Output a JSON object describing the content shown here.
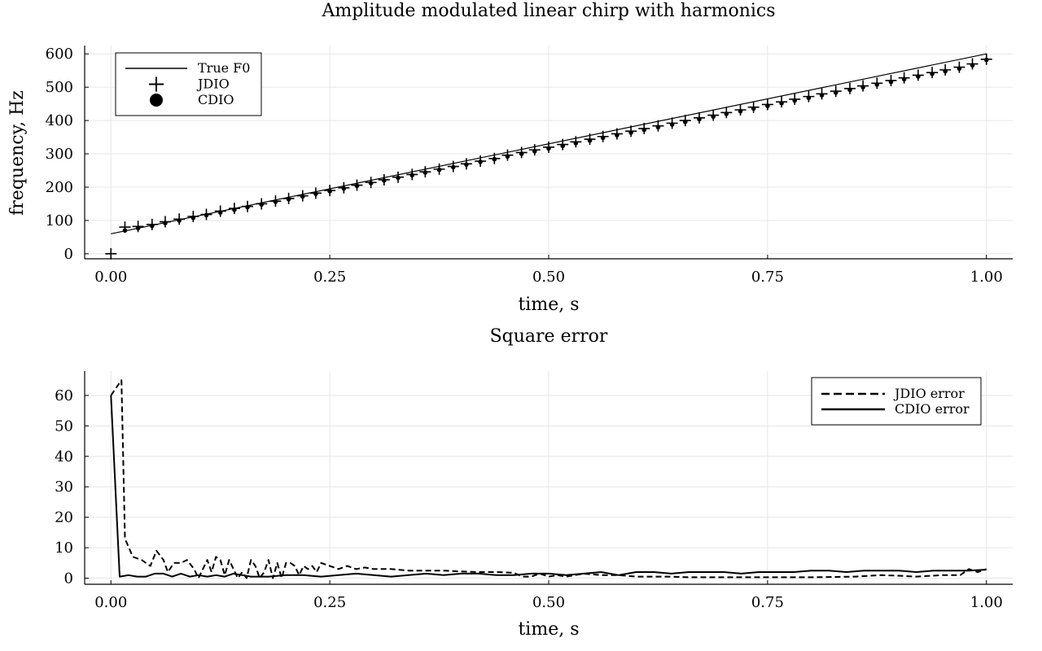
{
  "chart_data": [
    {
      "type": "line",
      "title": "Amplitude modulated linear chirp with harmonics",
      "xlabel": "time, s",
      "ylabel": "frequency, Hz",
      "xlim": [
        -0.03,
        1.03
      ],
      "ylim": [
        -15,
        625
      ],
      "xticks": [
        0,
        0.25,
        0.5,
        0.75,
        1.0
      ],
      "xtick_labels": [
        "0.00",
        "0.25",
        "0.50",
        "0.75",
        "1.00"
      ],
      "yticks": [
        0,
        100,
        200,
        300,
        400,
        500,
        600
      ],
      "ytick_labels": [
        "0",
        "100",
        "200",
        "300",
        "400",
        "500",
        "600"
      ],
      "grid": true,
      "legend_position": "top-left",
      "series": [
        {
          "name": "True F0",
          "style": "line",
          "x": [
            0.0,
            1.0
          ],
          "y": [
            60,
            600
          ]
        },
        {
          "name": "JDIO",
          "style": "plus-marker",
          "x": [
            0.0,
            0.016,
            0.031,
            0.047,
            0.062,
            0.078,
            0.094,
            0.109,
            0.125,
            0.141,
            0.156,
            0.172,
            0.188,
            0.203,
            0.219,
            0.234,
            0.25,
            0.266,
            0.281,
            0.297,
            0.312,
            0.328,
            0.344,
            0.359,
            0.375,
            0.391,
            0.406,
            0.422,
            0.438,
            0.453,
            0.469,
            0.484,
            0.5,
            0.516,
            0.531,
            0.547,
            0.562,
            0.578,
            0.594,
            0.609,
            0.625,
            0.641,
            0.656,
            0.672,
            0.688,
            0.703,
            0.719,
            0.734,
            0.75,
            0.766,
            0.781,
            0.797,
            0.812,
            0.828,
            0.844,
            0.859,
            0.875,
            0.891,
            0.906,
            0.922,
            0.938,
            0.953,
            0.969,
            0.984,
            1.0
          ],
          "y": [
            0,
            80,
            82,
            88,
            96,
            104,
            112,
            118,
            128,
            136,
            142,
            150,
            158,
            166,
            174,
            182,
            190,
            198,
            206,
            214,
            222,
            230,
            238,
            246,
            254,
            262,
            270,
            278,
            286,
            296,
            304,
            312,
            320,
            328,
            336,
            344,
            352,
            360,
            368,
            376,
            384,
            392,
            400,
            408,
            416,
            424,
            432,
            440,
            448,
            456,
            464,
            472,
            480,
            488,
            496,
            504,
            512,
            520,
            528,
            536,
            544,
            552,
            560,
            570,
            584
          ]
        },
        {
          "name": "CDIO",
          "style": "dot-marker",
          "x": [
            0.016,
            0.031,
            0.047,
            0.062,
            0.078,
            0.094,
            0.109,
            0.125,
            0.141,
            0.156,
            0.172,
            0.188,
            0.203,
            0.219,
            0.234,
            0.25,
            0.266,
            0.281,
            0.297,
            0.312,
            0.328,
            0.344,
            0.359,
            0.375,
            0.391,
            0.406,
            0.422,
            0.438,
            0.453,
            0.469,
            0.484,
            0.5,
            0.516,
            0.531,
            0.547,
            0.562,
            0.578,
            0.594,
            0.609,
            0.625,
            0.641,
            0.656,
            0.672,
            0.688,
            0.703,
            0.719,
            0.734,
            0.75,
            0.766,
            0.781,
            0.797,
            0.812,
            0.828,
            0.844,
            0.859,
            0.875,
            0.891,
            0.906,
            0.922,
            0.938,
            0.953,
            0.969,
            0.984,
            1.0
          ],
          "y": [
            70,
            77,
            84,
            92,
            100,
            108,
            116,
            124,
            132,
            140,
            148,
            156,
            164,
            172,
            180,
            188,
            196,
            204,
            212,
            220,
            228,
            236,
            244,
            252,
            260,
            268,
            276,
            284,
            292,
            300,
            308,
            316,
            324,
            332,
            340,
            348,
            356,
            364,
            372,
            380,
            388,
            396,
            404,
            412,
            420,
            428,
            436,
            444,
            452,
            460,
            468,
            476,
            484,
            492,
            500,
            508,
            516,
            524,
            532,
            540,
            548,
            556,
            566,
            582
          ]
        }
      ]
    },
    {
      "type": "line",
      "title": "Square error",
      "xlabel": "time, s",
      "ylabel": "",
      "xlim": [
        -0.03,
        1.03
      ],
      "ylim": [
        -2,
        68
      ],
      "xticks": [
        0,
        0.25,
        0.5,
        0.75,
        1.0
      ],
      "xtick_labels": [
        "0.00",
        "0.25",
        "0.50",
        "0.75",
        "1.00"
      ],
      "yticks": [
        0,
        10,
        20,
        30,
        40,
        50,
        60
      ],
      "ytick_labels": [
        "0",
        "10",
        "20",
        "30",
        "40",
        "50",
        "60"
      ],
      "grid": true,
      "legend_position": "top-right",
      "series": [
        {
          "name": "JDIO error",
          "style": "dashed",
          "x": [
            0.0,
            0.012,
            0.016,
            0.025,
            0.035,
            0.045,
            0.052,
            0.06,
            0.065,
            0.072,
            0.08,
            0.087,
            0.095,
            0.1,
            0.11,
            0.115,
            0.12,
            0.125,
            0.13,
            0.135,
            0.14,
            0.145,
            0.15,
            0.155,
            0.16,
            0.165,
            0.17,
            0.175,
            0.18,
            0.185,
            0.19,
            0.195,
            0.2,
            0.205,
            0.21,
            0.215,
            0.22,
            0.225,
            0.23,
            0.235,
            0.24,
            0.25,
            0.26,
            0.27,
            0.28,
            0.29,
            0.3,
            0.32,
            0.34,
            0.36,
            0.38,
            0.4,
            0.42,
            0.44,
            0.46,
            0.47,
            0.48,
            0.49,
            0.5,
            0.51,
            0.52,
            0.54,
            0.56,
            0.58,
            0.6,
            0.62,
            0.64,
            0.66,
            0.7,
            0.75,
            0.8,
            0.85,
            0.88,
            0.9,
            0.92,
            0.95,
            0.97,
            0.98,
            0.99,
            1.0
          ],
          "y": [
            60,
            65,
            13,
            7,
            6,
            4,
            9,
            6,
            2,
            5,
            5,
            6,
            3,
            0,
            6,
            2,
            7,
            6,
            1,
            6,
            3,
            0,
            2,
            0,
            6,
            4,
            0,
            2,
            6,
            0,
            5,
            0,
            5,
            5,
            4,
            1,
            4,
            3,
            4,
            2,
            5,
            4,
            3,
            4,
            3,
            3.5,
            3,
            3,
            2.5,
            2.5,
            2.5,
            2.2,
            2,
            2,
            1.8,
            0.5,
            0.5,
            1.5,
            0.5,
            1,
            0.5,
            1.5,
            1,
            1,
            0.5,
            0.5,
            0.5,
            0.3,
            0.3,
            0.3,
            0.3,
            0.5,
            1,
            0.8,
            0.5,
            1,
            1,
            3,
            2,
            3
          ]
        },
        {
          "name": "CDIO error",
          "style": "solid",
          "x": [
            0.0,
            0.01,
            0.02,
            0.03,
            0.04,
            0.05,
            0.06,
            0.07,
            0.08,
            0.09,
            0.1,
            0.11,
            0.12,
            0.13,
            0.14,
            0.15,
            0.16,
            0.18,
            0.2,
            0.22,
            0.24,
            0.26,
            0.28,
            0.3,
            0.32,
            0.34,
            0.36,
            0.38,
            0.4,
            0.42,
            0.44,
            0.46,
            0.48,
            0.5,
            0.52,
            0.54,
            0.56,
            0.58,
            0.6,
            0.62,
            0.64,
            0.66,
            0.68,
            0.7,
            0.72,
            0.74,
            0.76,
            0.78,
            0.8,
            0.82,
            0.84,
            0.86,
            0.88,
            0.9,
            0.92,
            0.94,
            0.96,
            0.98,
            1.0
          ],
          "y": [
            60,
            0.5,
            1,
            0.5,
            0.5,
            1.5,
            1.5,
            0.5,
            1.5,
            0.5,
            1,
            0.5,
            1,
            0.5,
            1.5,
            1,
            0.5,
            0.5,
            1,
            1,
            0.5,
            1,
            1.5,
            1,
            0.5,
            1,
            1.5,
            1,
            1.5,
            1.5,
            1,
            1,
            1.5,
            1.5,
            1,
            1.5,
            2,
            1,
            2,
            2,
            1.5,
            2,
            2,
            2,
            1.5,
            2,
            2,
            2,
            2.5,
            2.5,
            2,
            2.5,
            2.5,
            2.5,
            2,
            2.5,
            2.5,
            2.5,
            2.8
          ]
        }
      ]
    }
  ]
}
